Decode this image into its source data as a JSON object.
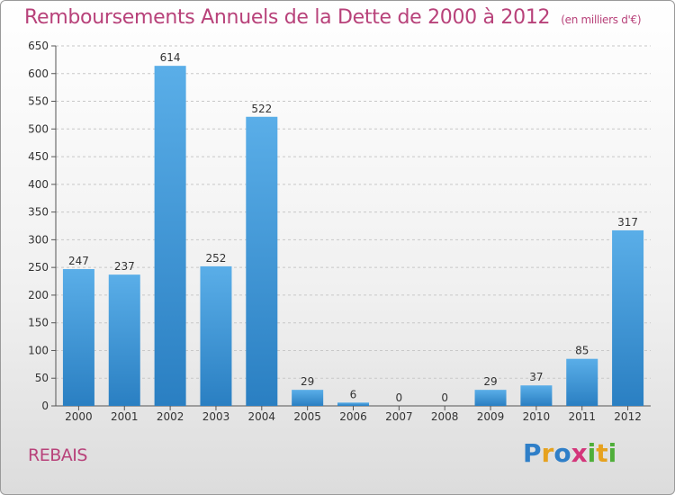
{
  "header": {
    "title": "Remboursements Annuels de la Dette de 2000 à 2012",
    "unit": "(en milliers d'€)"
  },
  "footer": {
    "commune": "REBAIS",
    "logo": "Proxiti"
  },
  "colors": {
    "title": "#b8427a",
    "bar_top": "#5aaee8",
    "bar_bottom": "#2a7fc2",
    "grid": "#c8c8c8",
    "axis": "#555555"
  },
  "logo_letters": [
    {
      "ch": "P",
      "color": "#2f7fc8"
    },
    {
      "ch": "r",
      "color": "#e6a21f"
    },
    {
      "ch": "o",
      "color": "#2f7fc8"
    },
    {
      "ch": "x",
      "color": "#d3357a"
    },
    {
      "ch": "i",
      "color": "#4fae3a"
    },
    {
      "ch": "t",
      "color": "#e6a21f"
    },
    {
      "ch": "i",
      "color": "#4fae3a"
    }
  ],
  "chart_data": {
    "type": "bar",
    "title": "Remboursements Annuels de la Dette de 2000 à 2012",
    "xlabel": "",
    "ylabel": "",
    "ylim": [
      0,
      650
    ],
    "yticks": [
      0,
      50,
      100,
      150,
      200,
      250,
      300,
      350,
      400,
      450,
      500,
      550,
      600,
      650
    ],
    "grid": true,
    "categories": [
      "2000",
      "2001",
      "2002",
      "2003",
      "2004",
      "2005",
      "2006",
      "2007",
      "2008",
      "2009",
      "2010",
      "2011",
      "2012"
    ],
    "values": [
      247,
      237,
      614,
      252,
      522,
      29,
      6,
      0,
      0,
      29,
      37,
      85,
      317
    ]
  }
}
